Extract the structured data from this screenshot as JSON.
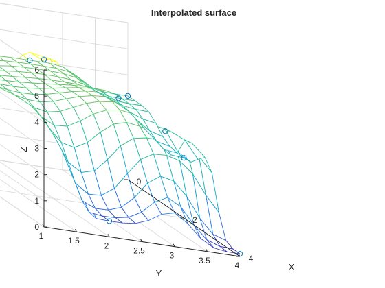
{
  "chart_data": {
    "type": "surface",
    "title": "Interpolated surface",
    "xlabel": "X",
    "ylabel": "Y",
    "zlabel": "Z",
    "xlim": [
      0,
      4
    ],
    "ylim": [
      1,
      4
    ],
    "zlim": [
      0,
      6
    ],
    "x_ticks": [
      "0",
      "2",
      "4"
    ],
    "y_ticks": [
      "1",
      "1.5",
      "2",
      "2.5",
      "3",
      "3.5",
      "4"
    ],
    "z_ticks": [
      "0",
      "1",
      "2",
      "3",
      "4",
      "5",
      "6"
    ],
    "grid": true,
    "colormap": "parula",
    "colormap_stops": [
      "#3e26a8",
      "#2c7bed",
      "#12b1c6",
      "#46c480",
      "#b6c53d",
      "#f9fb0e"
    ],
    "mesh_x": [
      0,
      0.25,
      0.5,
      0.75,
      1,
      1.25,
      1.5,
      1.75,
      2,
      2.25,
      2.5,
      2.75,
      3,
      3.25,
      3.5,
      3.75,
      4
    ],
    "mesh_y": [
      1,
      1.2,
      1.4,
      1.6,
      1.8,
      2,
      2.2,
      2.4,
      2.6,
      2.8,
      3,
      3.2,
      3.4,
      3.6,
      3.8,
      4
    ],
    "sample_points": [
      {
        "x": 4,
        "y": 1,
        "z": 6.4
      },
      {
        "x": 0,
        "y": 1,
        "z": 3.8
      },
      {
        "x": 4,
        "y": 2,
        "z": 0.6
      },
      {
        "x": 0,
        "y": 4,
        "z": 3.2
      },
      {
        "x": 2,
        "y": 4,
        "z": 2.3
      },
      {
        "x": 2.5,
        "y": 3.5,
        "z": 3.5
      },
      {
        "x": 2,
        "y": 3,
        "z": 4.2
      },
      {
        "x": 4,
        "y": 4,
        "z": 0.1
      },
      {
        "x": 0,
        "y": 2.5,
        "z": 4.0
      }
    ],
    "marker_color": "#0072bd",
    "grid_color": "#dddddd",
    "axis_color": "#262626"
  }
}
